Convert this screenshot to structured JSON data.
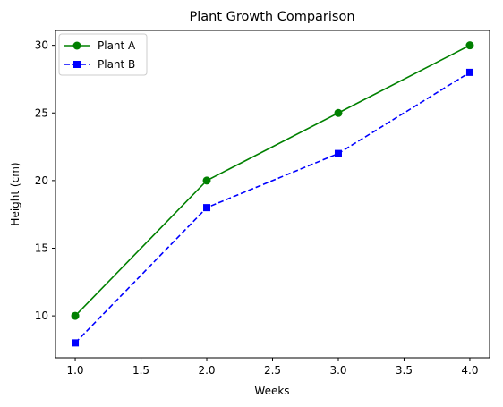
{
  "chart_data": {
    "type": "line",
    "title": "Plant Growth Comparison",
    "xlabel": "Weeks",
    "ylabel": "Height (cm)",
    "xlim": [
      0.85,
      4.15
    ],
    "ylim": [
      6.9,
      31.1
    ],
    "x_ticks": [
      "1.0",
      "1.5",
      "2.0",
      "2.5",
      "3.0",
      "3.5",
      "4.0"
    ],
    "y_ticks": [
      "10",
      "15",
      "20",
      "25",
      "30"
    ],
    "grid": false,
    "legend_position": "top-left",
    "series": [
      {
        "name": "Plant A",
        "x": [
          1,
          2,
          3,
          4
        ],
        "values": [
          10,
          20,
          25,
          30
        ],
        "color": "#008000",
        "line_style": "solid",
        "marker": "circle"
      },
      {
        "name": "Plant B",
        "x": [
          1,
          2,
          3,
          4
        ],
        "values": [
          8,
          18,
          22,
          28
        ],
        "color": "#0000ff",
        "line_style": "dashed",
        "marker": "square"
      }
    ]
  }
}
